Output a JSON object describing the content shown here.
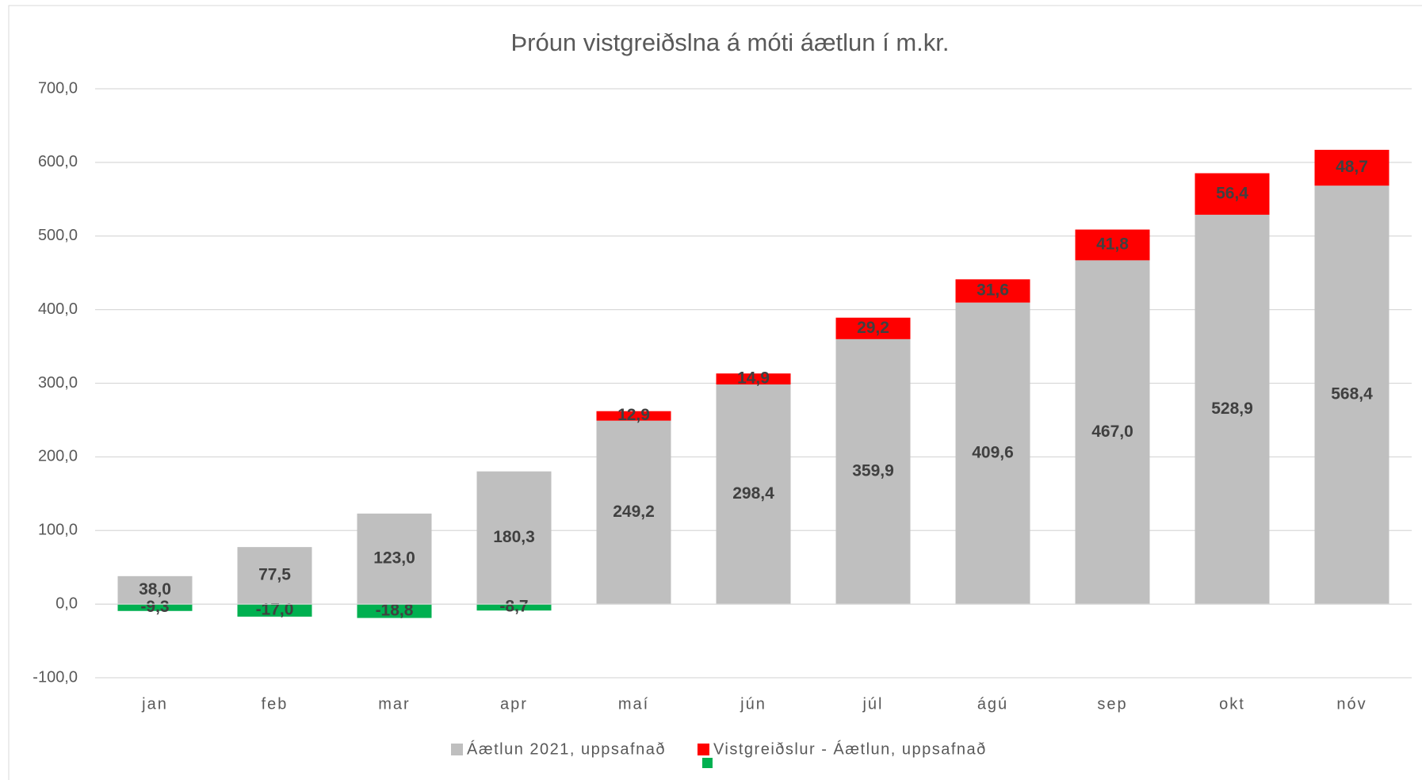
{
  "chart_data": {
    "type": "stacked_bar",
    "title": "Þróun vistgreiðslna á móti áætlun í m.kr.",
    "categories": [
      "jan",
      "feb",
      "mar",
      "apr",
      "maí",
      "jún",
      "júl",
      "ágú",
      "sep",
      "okt",
      "nóv"
    ],
    "series": [
      {
        "name": "Áætlun 2021, uppsafnað",
        "color": "#bfbfbf",
        "values": [
          38.0,
          77.5,
          123.0,
          180.3,
          249.2,
          298.4,
          359.9,
          409.6,
          467.0,
          528.9,
          568.4
        ],
        "value_labels": [
          "38,0",
          "77,5",
          "123,0",
          "180,3",
          "249,2",
          "298,4",
          "359,9",
          "409,6",
          "467,0",
          "528,9",
          "568,4"
        ]
      },
      {
        "name": "Vistgreiðslur - Áætlun, uppsafnað",
        "color": "#ff0000",
        "negative_color": "#00b050",
        "values": [
          -9.3,
          -17.0,
          -18.8,
          -8.7,
          12.9,
          14.9,
          29.2,
          31.6,
          41.8,
          56.4,
          48.7
        ],
        "value_labels": [
          "-9,3",
          "-17,0",
          "-18,8",
          "-8,7",
          "12,9",
          "14,9",
          "29,2",
          "31,6",
          "41,8",
          "56,4",
          "48,7"
        ]
      }
    ],
    "ylim": [
      -100,
      700
    ],
    "yticks": [
      {
        "value": -100,
        "label": "-100,0"
      },
      {
        "value": 0,
        "label": "0,0"
      },
      {
        "value": 100,
        "label": "100,0"
      },
      {
        "value": 200,
        "label": "200,0"
      },
      {
        "value": 300,
        "label": "300,0"
      },
      {
        "value": 400,
        "label": "400,0"
      },
      {
        "value": 500,
        "label": "500,0"
      },
      {
        "value": 600,
        "label": "600,0"
      },
      {
        "value": 700,
        "label": "700,0"
      }
    ],
    "grid": true
  }
}
